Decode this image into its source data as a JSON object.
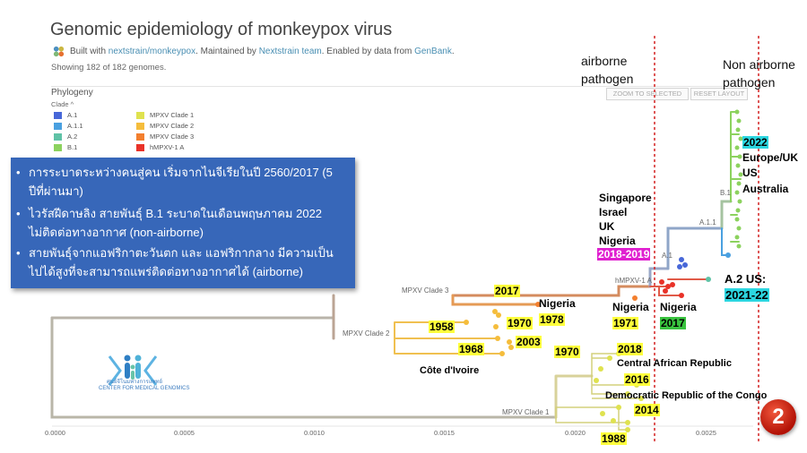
{
  "header": {
    "title": "Genomic epidemiology of monkeypox virus",
    "byline_prefix": "Built with ",
    "byline_link1": "nextstrain/monkeypox",
    "byline_mid": ". Maintained by ",
    "byline_link2": "Nextstrain team",
    "byline_mid2": ". Enabled by data from ",
    "byline_link3": "GenBank",
    "byline_suffix": ".",
    "genome_count": "Showing 182 of 182 genomes."
  },
  "panel": {
    "heading": "Phylogeny",
    "clade_label": "Clade ^",
    "zoom_button": "ZOOM TO SELECTED",
    "reset_button": "RESET LAYOUT"
  },
  "legend": [
    {
      "label": "A.1",
      "color": "#4767d8"
    },
    {
      "label": "A.1.1",
      "color": "#4aa0e0"
    },
    {
      "label": "A.2",
      "color": "#5fc2a6"
    },
    {
      "label": "B.1",
      "color": "#8cd25e"
    },
    {
      "label": "MPXV Clade 1",
      "color": "#dfe24f"
    },
    {
      "label": "MPXV Clade 2",
      "color": "#f5bd3c"
    },
    {
      "label": "MPXV Clade 3",
      "color": "#f37f2e"
    },
    {
      "label": "hMPXV-1 A",
      "color": "#e93228"
    }
  ],
  "bullets": [
    {
      "dot": "•",
      "text": "การระบาดระหว่างคนสู่คน เริ่มจากไนจีเรียในปี 2560/2017 (5 ปีที่ผ่านมา)"
    },
    {
      "dot": "•",
      "text": "ไวรัสฝีดาษลิง สายพันธุ์ B.1 ระบาดในเดือนพฤษภาคม 2022 ไม่ติดต่อทางอากาศ (non-airborne)"
    },
    {
      "dot": "•",
      "text": "สายพันธุ์จากแอฟริกาตะวันตก และ แอฟริกากลาง มีความเป็นไปได้สูงที่จะสามารถแพร่ติดต่อทางอากาศได้ (airborne)"
    }
  ],
  "branch_labels": {
    "clade3": "MPXV Clade 3",
    "clade2": "MPXV Clade 2",
    "clade1": "MPXV Clade 1",
    "a1": "A.1",
    "a11": "A.1.1",
    "b1": "B.1",
    "hmpxv": "hMPXV-1 A"
  },
  "annotations": {
    "airborne": "airborne\npathogen",
    "non_airborne": "Non airborne\npathogen",
    "y2017a": "2017",
    "nigeria1978": "Nigeria",
    "y1978": "1978",
    "y1958": "1958",
    "y1970a": "1970",
    "y2003": "2003",
    "y1968": "1968",
    "cote": "Côte d'Ivoire",
    "nigeria1971": "Nigeria",
    "y1971": "1971",
    "nigeria2017": "Nigeria",
    "y2017b": "2017",
    "sing1": "Singapore",
    "sing2": "Israel",
    "sing3": "UK",
    "sing4": "Nigeria",
    "y2018_2019": "2018-2019",
    "y2022": "2022",
    "eu1": "Europe/UK",
    "eu2": "US",
    "eu3": "Australia",
    "a2us": "A.2 US:",
    "y2021_22": "2021-22",
    "y1970b": "1970",
    "y2018": "2018",
    "car": "Central African Republic",
    "y2016": "2016",
    "drc": "Democratic Republic of the Congo",
    "y2014": "2014",
    "y1988": "1988"
  },
  "axis": {
    "ticks": [
      "0.0000",
      "0.0005",
      "0.0010",
      "0.0015",
      "0.0020",
      "0.0025"
    ]
  },
  "logo_text": "ศูนย์จีโนมทางการแพทย์\nCENTER FOR MEDICAL GENOMICS",
  "badge": "2"
}
